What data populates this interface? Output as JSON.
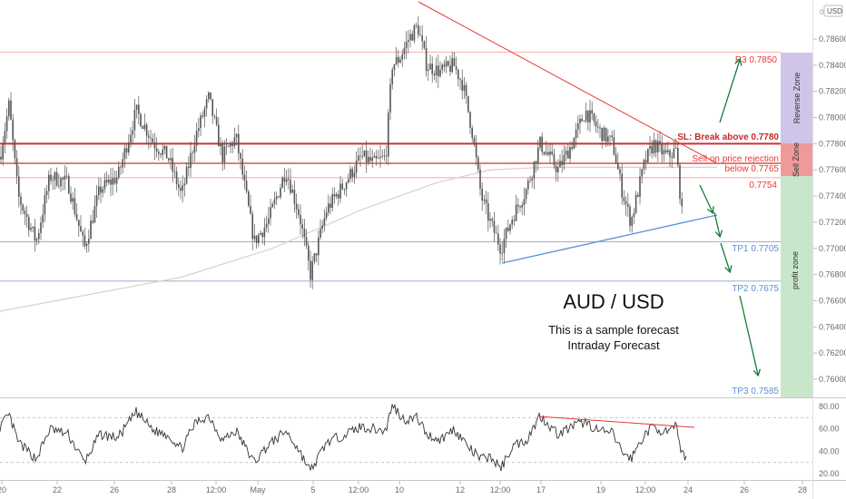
{
  "currency": "USD",
  "header_mark": "0",
  "title": "AUD / USD",
  "subtitle1": "This is a sample forecast",
  "subtitle2": "Intraday Forecast",
  "price_ticks": [
    "0.78600",
    "0.78400",
    "0.78200",
    "0.78000",
    "0.77800",
    "0.77600",
    "0.77400",
    "0.77200",
    "0.77000",
    "0.76800",
    "0.76600",
    "0.76400",
    "0.76200",
    "0.76000"
  ],
  "rsi_ticks": [
    "80.00",
    "60.00",
    "40.00",
    "20.00"
  ],
  "x_ticks": [
    "20",
    "22",
    "26",
    "28",
    "12:00",
    "May",
    "5",
    "12:00",
    "10",
    "12",
    "12:00",
    "17",
    "19",
    "12:00",
    "24",
    "26",
    "28"
  ],
  "levels": {
    "r3": "R3 0.7850",
    "sl": "SL: Break above 0.7780",
    "sell1": "Sell on price rejection",
    "sell2": "below 0.7765",
    "l7754": "0.7754",
    "tp1": "TP1 0.7705",
    "tp2": "TP2 0.7675",
    "tp3": "TP3 0.7585"
  },
  "zones": {
    "reverse": "Reverse Zone",
    "sell": "Sell Zone",
    "profit": "profit zone"
  },
  "colors": {
    "candle": "#555555",
    "resistance": "#e53935",
    "support": "#2196f3",
    "arrow": "#1b7a3e",
    "reverse_zone": "#d1c4e9",
    "sell_zone": "#ef9a9a",
    "profit_zone": "#c8e6c9",
    "level_blue": "#90a4c8"
  },
  "chart_data": {
    "type": "candlestick",
    "symbol": "AUD / USD",
    "ylim": [
      0.7588,
      0.7872
    ],
    "levels": [
      {
        "label": "R3",
        "value": 0.785
      },
      {
        "label": "SL",
        "value": 0.778
      },
      {
        "label": "Sell",
        "value": 0.7765
      },
      {
        "label": "",
        "value": 0.7754
      },
      {
        "label": "TP1",
        "value": 0.7705
      },
      {
        "label": "TP2",
        "value": 0.7675
      },
      {
        "label": "TP3",
        "value": 0.7585
      }
    ],
    "price_path": [
      [
        0,
        0.777
      ],
      [
        10,
        0.781
      ],
      [
        20,
        0.774
      ],
      [
        40,
        0.7705
      ],
      [
        55,
        0.7755
      ],
      [
        75,
        0.775
      ],
      [
        93,
        0.77
      ],
      [
        110,
        0.7745
      ],
      [
        130,
        0.7755
      ],
      [
        150,
        0.7805
      ],
      [
        170,
        0.778
      ],
      [
        185,
        0.777
      ],
      [
        200,
        0.774
      ],
      [
        215,
        0.7785
      ],
      [
        230,
        0.7815
      ],
      [
        245,
        0.777
      ],
      [
        260,
        0.7785
      ],
      [
        280,
        0.7705
      ],
      [
        295,
        0.772
      ],
      [
        315,
        0.776
      ],
      [
        330,
        0.7725
      ],
      [
        342,
        0.768
      ],
      [
        360,
        0.773
      ],
      [
        380,
        0.775
      ],
      [
        398,
        0.777
      ],
      [
        412,
        0.7765
      ],
      [
        425,
        0.777
      ],
      [
        432,
        0.784
      ],
      [
        440,
        0.7845
      ],
      [
        450,
        0.786
      ],
      [
        460,
        0.787
      ],
      [
        470,
        0.784
      ],
      [
        485,
        0.7835
      ],
      [
        500,
        0.784
      ],
      [
        510,
        0.7825
      ],
      [
        520,
        0.779
      ],
      [
        530,
        0.774
      ],
      [
        540,
        0.772
      ],
      [
        552,
        0.77
      ],
      [
        565,
        0.7725
      ],
      [
        580,
        0.7745
      ],
      [
        595,
        0.778
      ],
      [
        615,
        0.776
      ],
      [
        630,
        0.778
      ],
      [
        645,
        0.7805
      ],
      [
        660,
        0.779
      ],
      [
        675,
        0.778
      ],
      [
        685,
        0.7745
      ],
      [
        695,
        0.772
      ],
      [
        710,
        0.7765
      ],
      [
        720,
        0.778
      ],
      [
        735,
        0.777
      ],
      [
        745,
        0.7775
      ],
      [
        752,
        0.772
      ]
    ],
    "ma_path": [
      [
        0,
        0.7652
      ],
      [
        100,
        0.7665
      ],
      [
        200,
        0.7678
      ],
      [
        300,
        0.77
      ],
      [
        400,
        0.773
      ],
      [
        480,
        0.775
      ],
      [
        540,
        0.776
      ],
      [
        600,
        0.7762
      ],
      [
        700,
        0.7762
      ],
      [
        790,
        0.7762
      ]
    ],
    "rsi_ylim": [
      20,
      80
    ],
    "rsi_levels": [
      70,
      30
    ],
    "rsi_path": [
      [
        0,
        62
      ],
      [
        10,
        72
      ],
      [
        20,
        48
      ],
      [
        40,
        33
      ],
      [
        55,
        60
      ],
      [
        75,
        55
      ],
      [
        93,
        30
      ],
      [
        110,
        55
      ],
      [
        130,
        52
      ],
      [
        150,
        75
      ],
      [
        170,
        58
      ],
      [
        185,
        55
      ],
      [
        200,
        42
      ],
      [
        215,
        65
      ],
      [
        230,
        72
      ],
      [
        245,
        50
      ],
      [
        260,
        58
      ],
      [
        280,
        30
      ],
      [
        295,
        45
      ],
      [
        315,
        58
      ],
      [
        330,
        40
      ],
      [
        342,
        22
      ],
      [
        360,
        48
      ],
      [
        380,
        55
      ],
      [
        398,
        62
      ],
      [
        412,
        60
      ],
      [
        425,
        58
      ],
      [
        432,
        82
      ],
      [
        445,
        68
      ],
      [
        460,
        70
      ],
      [
        470,
        55
      ],
      [
        485,
        50
      ],
      [
        500,
        60
      ],
      [
        510,
        50
      ],
      [
        520,
        40
      ],
      [
        530,
        33
      ],
      [
        540,
        35
      ],
      [
        552,
        25
      ],
      [
        565,
        45
      ],
      [
        580,
        50
      ],
      [
        595,
        72
      ],
      [
        615,
        55
      ],
      [
        630,
        62
      ],
      [
        645,
        66
      ],
      [
        660,
        58
      ],
      [
        675,
        56
      ],
      [
        685,
        40
      ],
      [
        695,
        33
      ],
      [
        710,
        55
      ],
      [
        720,
        62
      ],
      [
        735,
        56
      ],
      [
        745,
        62
      ],
      [
        752,
        36
      ]
    ]
  }
}
